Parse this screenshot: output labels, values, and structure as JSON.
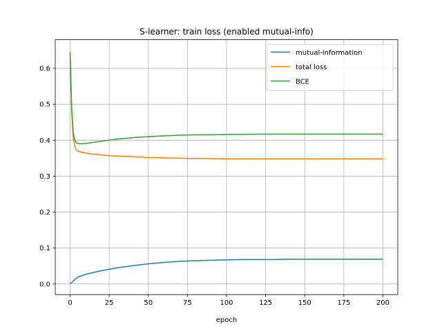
{
  "chart_data": {
    "type": "line",
    "title": "S-learner: train loss (enabled mutual-info)",
    "xlabel": "epoch",
    "ylabel": "",
    "xlim": [
      -9.5,
      209.5
    ],
    "ylim": [
      -0.0295,
      0.6795
    ],
    "xticks": [
      0,
      25,
      50,
      75,
      100,
      125,
      150,
      175,
      200
    ],
    "yticks": [
      0.0,
      0.1,
      0.2,
      0.3,
      0.4,
      0.5,
      0.6
    ],
    "ytick_labels": [
      "0.0",
      "0.1",
      "0.2",
      "0.3",
      "0.4",
      "0.5",
      "0.6"
    ],
    "grid": true,
    "legend_position": "top-right",
    "series": [
      {
        "name": "mutual-information",
        "color": "#1f77b4",
        "x": [
          0,
          1,
          2,
          3,
          4,
          5,
          6,
          8,
          10,
          12,
          15,
          20,
          25,
          30,
          40,
          50,
          60,
          70,
          80,
          90,
          100,
          110,
          120,
          130,
          140,
          150,
          160,
          170,
          180,
          190,
          200
        ],
        "y": [
          0.001,
          0.004,
          0.008,
          0.012,
          0.016,
          0.019,
          0.021,
          0.024,
          0.027,
          0.029,
          0.032,
          0.037,
          0.041,
          0.045,
          0.051,
          0.056,
          0.06,
          0.063,
          0.065,
          0.066,
          0.067,
          0.068,
          0.068,
          0.068,
          0.069,
          0.069,
          0.069,
          0.069,
          0.069,
          0.069,
          0.069
        ]
      },
      {
        "name": "total loss",
        "color": "#ff7f0e",
        "x": [
          0,
          1,
          2,
          3,
          4,
          5,
          6,
          8,
          10,
          12,
          15,
          20,
          25,
          30,
          40,
          50,
          60,
          70,
          80,
          90,
          100,
          110,
          120,
          130,
          140,
          150,
          160,
          170,
          180,
          190,
          200
        ],
        "y": [
          0.641,
          0.48,
          0.405,
          0.382,
          0.374,
          0.37,
          0.368,
          0.366,
          0.364,
          0.363,
          0.361,
          0.359,
          0.357,
          0.356,
          0.354,
          0.352,
          0.351,
          0.35,
          0.349,
          0.349,
          0.348,
          0.348,
          0.348,
          0.348,
          0.348,
          0.348,
          0.348,
          0.348,
          0.348,
          0.348,
          0.348
        ]
      },
      {
        "name": "BCE",
        "color": "#2ca02c",
        "x": [
          0,
          1,
          2,
          3,
          4,
          5,
          6,
          8,
          10,
          12,
          15,
          20,
          25,
          30,
          40,
          50,
          60,
          70,
          80,
          90,
          100,
          110,
          120,
          130,
          140,
          150,
          160,
          170,
          180,
          190,
          200
        ],
        "y": [
          0.646,
          0.49,
          0.42,
          0.4,
          0.393,
          0.391,
          0.39,
          0.39,
          0.391,
          0.392,
          0.394,
          0.397,
          0.4,
          0.403,
          0.407,
          0.41,
          0.412,
          0.414,
          0.415,
          0.415,
          0.416,
          0.416,
          0.417,
          0.417,
          0.417,
          0.417,
          0.417,
          0.417,
          0.417,
          0.417,
          0.417
        ]
      }
    ]
  }
}
